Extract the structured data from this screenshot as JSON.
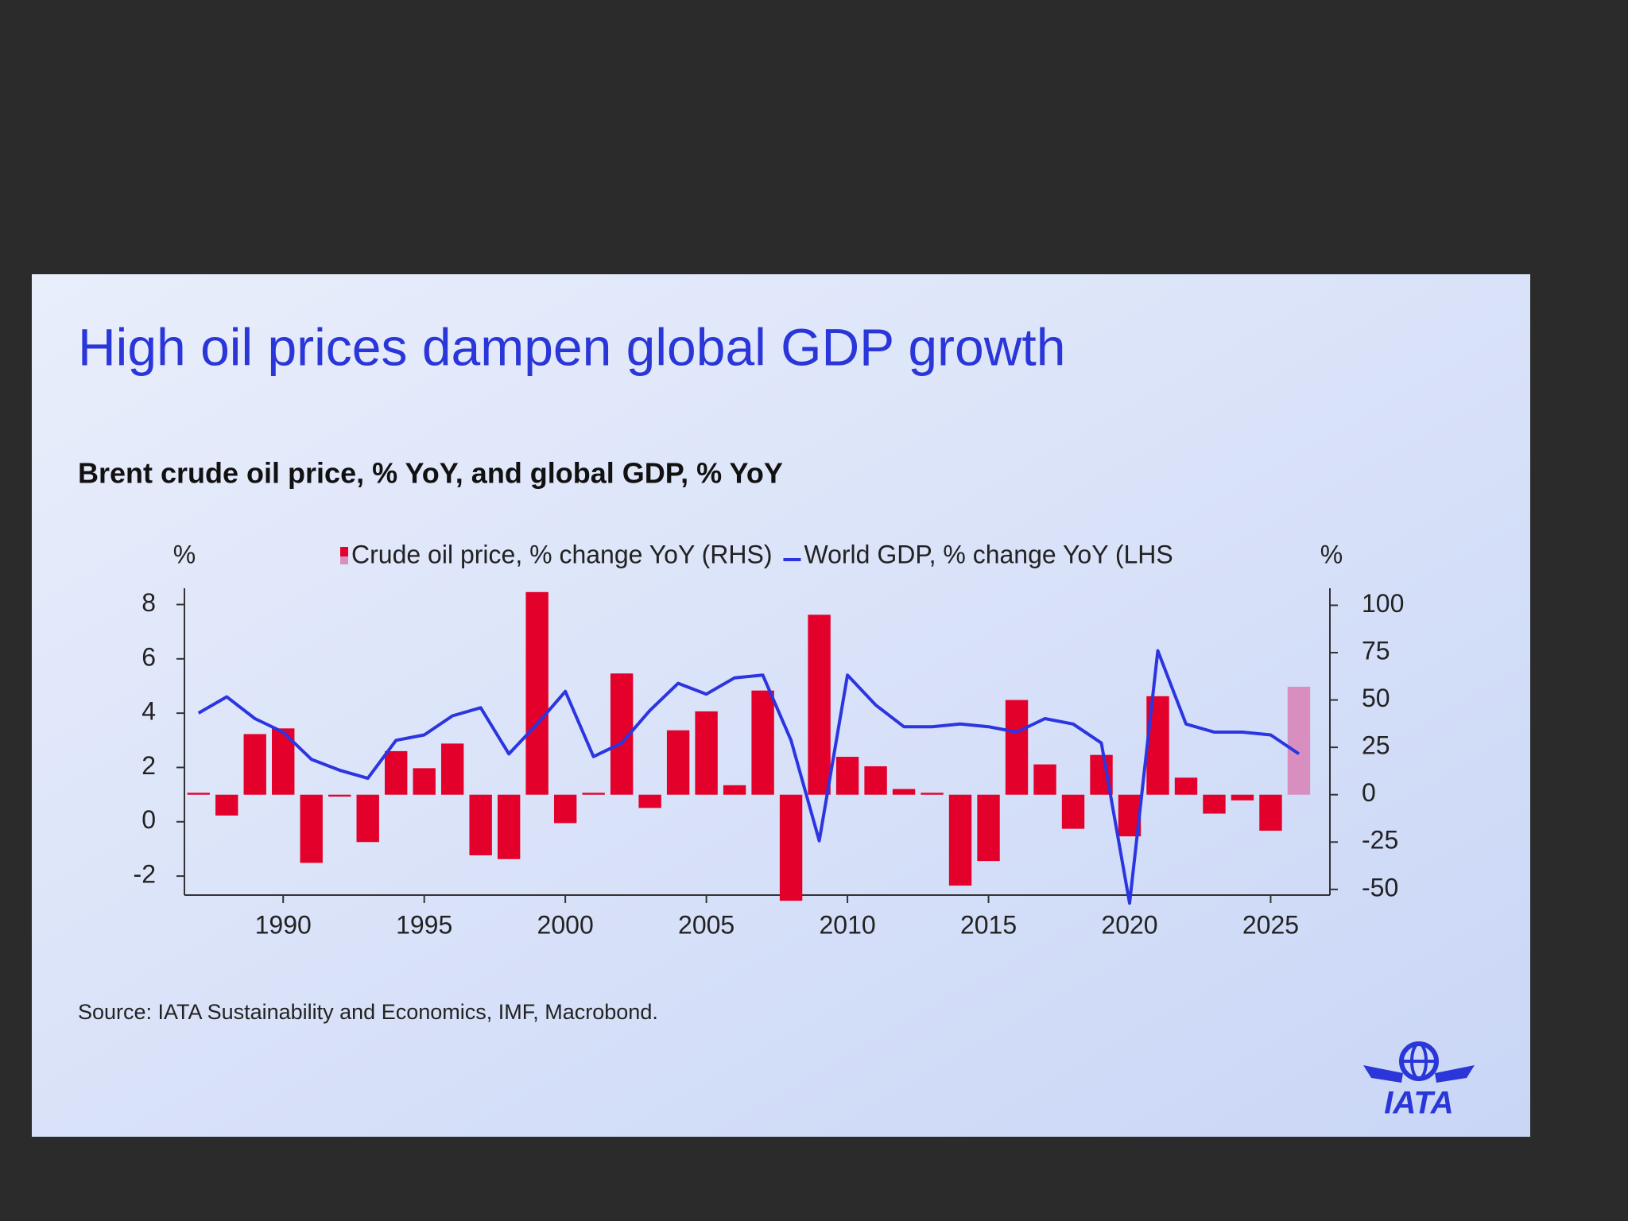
{
  "logo": "IATA",
  "chart_data": {
    "type": "combo",
    "title": "High oil prices dampen global GDP growth",
    "subtitle": "Brent crude oil price, % YoY, and global GDP, % YoY",
    "ylabel": "%",
    "y2label": "%",
    "source": "Source: IATA Sustainability and Economics, IMF, Macrobond.",
    "x": [
      1987,
      1988,
      1989,
      1990,
      1991,
      1992,
      1993,
      1994,
      1995,
      1996,
      1997,
      1998,
      1999,
      2000,
      2001,
      2002,
      2003,
      2004,
      2005,
      2006,
      2007,
      2008,
      2009,
      2010,
      2011,
      2012,
      2013,
      2014,
      2015,
      2016,
      2017,
      2018,
      2019,
      2020,
      2021,
      2022,
      2023,
      2024,
      2025,
      2026
    ],
    "xlim": [
      1986.5,
      2027.1
    ],
    "xticks": [
      1990,
      1995,
      2000,
      2005,
      2010,
      2015,
      2020,
      2025
    ],
    "ylim": [
      -2.7,
      8.6
    ],
    "yticks": [
      -2,
      0,
      2,
      4,
      6,
      8
    ],
    "y2lim": [
      -53,
      109
    ],
    "y2ticks": [
      -50,
      -25,
      0,
      25,
      50,
      75,
      100
    ],
    "series": [
      {
        "name": "Crude oil price, % change YoY (RHS)",
        "type": "bar",
        "axis": "y2",
        "color": "#e3002b",
        "colors": [
          "#e3002b",
          "#e3002b",
          "#e3002b",
          "#e3002b",
          "#e3002b",
          "#e3002b",
          "#e3002b",
          "#e3002b",
          "#e3002b",
          "#e3002b",
          "#e3002b",
          "#e3002b",
          "#e3002b",
          "#e3002b",
          "#e3002b",
          "#e3002b",
          "#e3002b",
          "#e3002b",
          "#e3002b",
          "#e3002b",
          "#e3002b",
          "#e3002b",
          "#e3002b",
          "#e3002b",
          "#e3002b",
          "#e3002b",
          "#e3002b",
          "#e3002b",
          "#e3002b",
          "#e3002b",
          "#e3002b",
          "#e3002b",
          "#e3002b",
          "#e3002b",
          "#e3002b",
          "#e3002b",
          "#e3002b",
          "#e3002b",
          "#e3002b",
          "#d98ec0"
        ],
        "values": [
          1,
          -11,
          32,
          35,
          -36,
          -1,
          -25,
          23,
          14,
          27,
          -32,
          -34,
          107,
          -15,
          1,
          64,
          -7,
          34,
          44,
          5,
          55,
          -56,
          95,
          20,
          15,
          3,
          1,
          -48,
          -35,
          50,
          16,
          -18,
          21,
          -22,
          52,
          9,
          -10,
          -3,
          -19,
          57
        ]
      },
      {
        "name": "World GDP, % change YoY (LHS",
        "type": "line",
        "axis": "y",
        "color": "#2b35e0",
        "values": [
          4.0,
          4.6,
          3.8,
          3.3,
          2.3,
          1.9,
          1.6,
          3.0,
          3.2,
          3.9,
          4.2,
          2.5,
          3.6,
          4.8,
          2.4,
          2.9,
          4.1,
          5.1,
          4.7,
          5.3,
          5.4,
          3.0,
          -0.7,
          5.4,
          4.3,
          3.5,
          3.5,
          3.6,
          3.5,
          3.3,
          3.8,
          3.6,
          2.9,
          -3.0,
          6.3,
          3.6,
          3.3,
          3.3,
          3.2,
          2.5
        ]
      }
    ]
  }
}
